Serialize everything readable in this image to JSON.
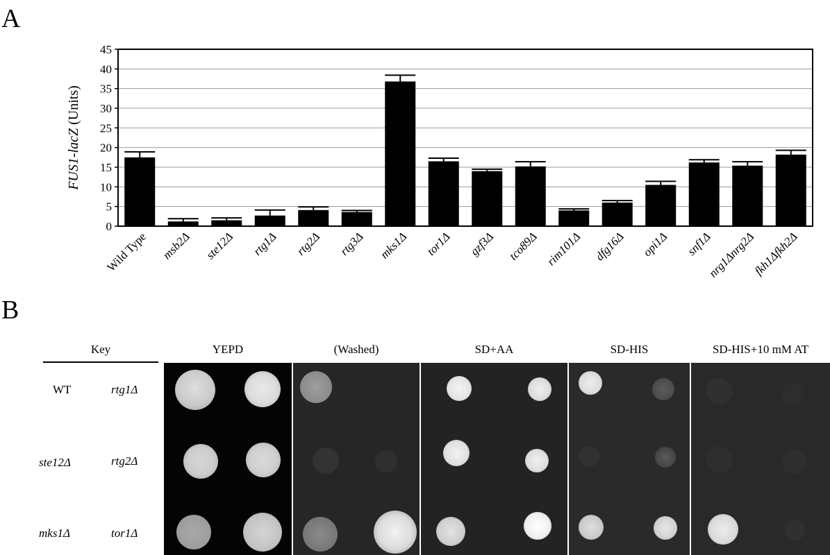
{
  "panels": {
    "a": "A",
    "b": "B"
  },
  "chart_data": {
    "type": "bar",
    "ylabel_italic": "FUS1-lacZ",
    "ylabel_rest": " (Units)",
    "ylim": [
      0,
      45
    ],
    "yticks": [
      0,
      5,
      10,
      15,
      20,
      25,
      30,
      35,
      40,
      45
    ],
    "grid": "horizontal",
    "categories": [
      "Wild Type",
      "msb2Δ",
      "ste12Δ",
      "rtg1Δ",
      "rtg2Δ",
      "rtg3Δ",
      "mks1Δ",
      "tor1Δ",
      "gzf3Δ",
      "tco89Δ",
      "rim101Δ",
      "dfg16Δ",
      "opi1Δ",
      "snf1Δ",
      "nrg1Δnrg2Δ",
      "fkh1Δfkh2Δ"
    ],
    "category_italic": [
      false,
      true,
      true,
      true,
      true,
      true,
      true,
      true,
      true,
      true,
      true,
      true,
      true,
      true,
      true,
      true
    ],
    "values": [
      17.5,
      1.2,
      1.5,
      2.7,
      4.1,
      3.6,
      36.8,
      16.5,
      14.0,
      15.2,
      4.0,
      6.0,
      10.5,
      16.2,
      15.4,
      18.2
    ],
    "errors": [
      1.4,
      0.7,
      0.6,
      1.4,
      0.8,
      0.4,
      1.6,
      0.8,
      0.5,
      1.2,
      0.4,
      0.5,
      0.9,
      0.7,
      1.0,
      1.1
    ]
  },
  "key": {
    "title": "Key",
    "rows": [
      {
        "left": "WT",
        "right": "rtg1Δ"
      },
      {
        "left": "ste12Δ",
        "right": "rtg2Δ"
      },
      {
        "left": "mks1Δ",
        "right": "tor1Δ"
      }
    ]
  },
  "plates": [
    {
      "title": "YEPD"
    },
    {
      "title": "(Washed)"
    },
    {
      "title": "SD+AA"
    },
    {
      "title": "SD-HIS"
    },
    {
      "title": "SD-HIS+10 mM AT"
    }
  ]
}
